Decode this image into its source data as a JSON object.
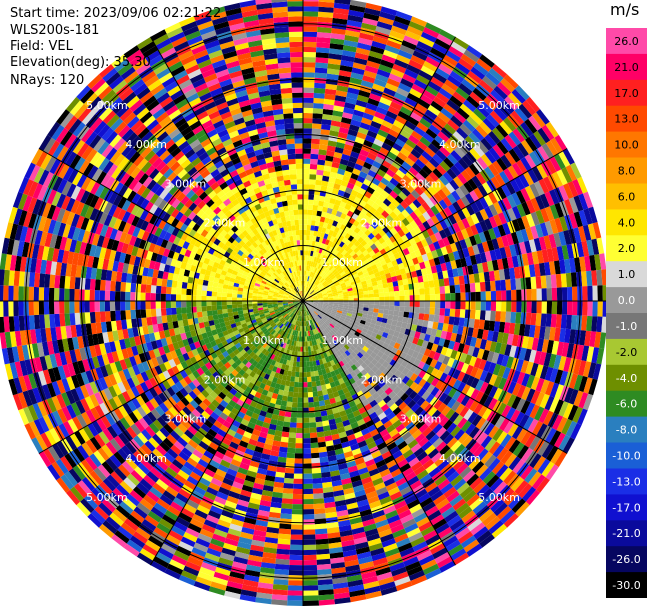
{
  "header": {
    "start_time": "Start time: 2023/09/06 02:21:22",
    "instrument": "WLS200s-181",
    "field": "Field: VEL",
    "elevation": "Elevation(deg): 35.30",
    "nrays": "NRays: 120"
  },
  "chart_data": {
    "type": "heatmap",
    "projection": "polar-ppi",
    "nrays": 120,
    "max_range_km": 5.5,
    "ring_labels_km": [
      "1.00km",
      "2.00km",
      "3.00km",
      "4.00km",
      "5.00km"
    ],
    "ring_distances_km": [
      1,
      2,
      3,
      4,
      5
    ],
    "spoke_angles_deg": [
      0,
      30,
      60,
      90,
      120,
      150,
      180,
      210,
      240,
      270,
      300,
      330
    ],
    "colorbar": {
      "unit": "m/s",
      "labels": [
        "26.0",
        "21.0",
        "17.0",
        "13.0",
        "10.0",
        "8.0",
        "6.0",
        "4.0",
        "2.0",
        "1.0",
        "0.0",
        "-1.0",
        "-2.0",
        "-4.0",
        "-6.0",
        "-8.0",
        "-10.0",
        "-13.0",
        "-17.0",
        "-21.0",
        "-26.0",
        "-30.0"
      ],
      "colors": [
        "#ff4aa8",
        "#ff0066",
        "#ff2020",
        "#ff4a00",
        "#ff7700",
        "#ff9a00",
        "#ffbf00",
        "#ffe600",
        "#ffff33",
        "#d9d9d9",
        "#999999",
        "#777777",
        "#a8c832",
        "#6e8f00",
        "#2e8b22",
        "#2a7fbf",
        "#1a5fd6",
        "#1a2ee6",
        "#1010d0",
        "#0a0a9c",
        "#060660",
        "#000000"
      ]
    },
    "near_field_pattern": {
      "description_free": true,
      "sectors": [
        {
          "from_deg": 270,
          "to_deg": 90,
          "value_range": [
            2.0,
            6.0
          ]
        },
        {
          "from_deg": 90,
          "to_deg": 150,
          "value_range": [
            0.0,
            1.0
          ]
        },
        {
          "from_deg": 150,
          "to_deg": 270,
          "value_range": [
            -6.0,
            -1.0
          ]
        }
      ],
      "coherent_range_km": 2.4
    }
  }
}
